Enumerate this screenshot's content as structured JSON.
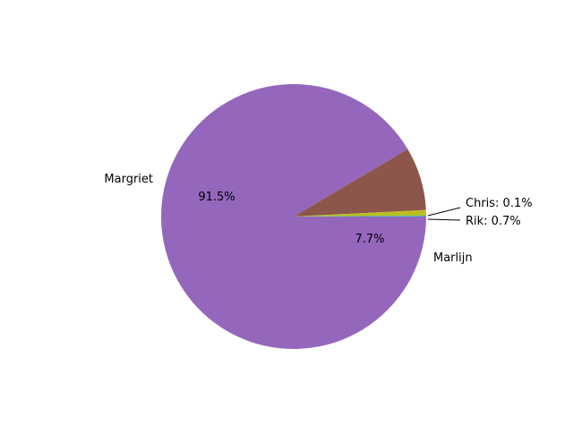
{
  "chart_data": {
    "type": "pie",
    "slices": [
      {
        "name": "Margriet",
        "value": 91.5,
        "color": "#9467bd",
        "label": "Margriet",
        "pct_label": "91.5%"
      },
      {
        "name": "Marlijn",
        "value": 7.7,
        "color": "#8c564b",
        "label": "Marlijn",
        "pct_label": "7.7%"
      },
      {
        "name": "Rik",
        "value": 0.7,
        "color": "#bcbd22",
        "label": "Rik: 0.7%"
      },
      {
        "name": "Chris",
        "value": 0.1,
        "color": "#17becf",
        "label": "Chris: 0.1%"
      }
    ],
    "start_angle_deg": 0,
    "direction": "clockwise"
  }
}
